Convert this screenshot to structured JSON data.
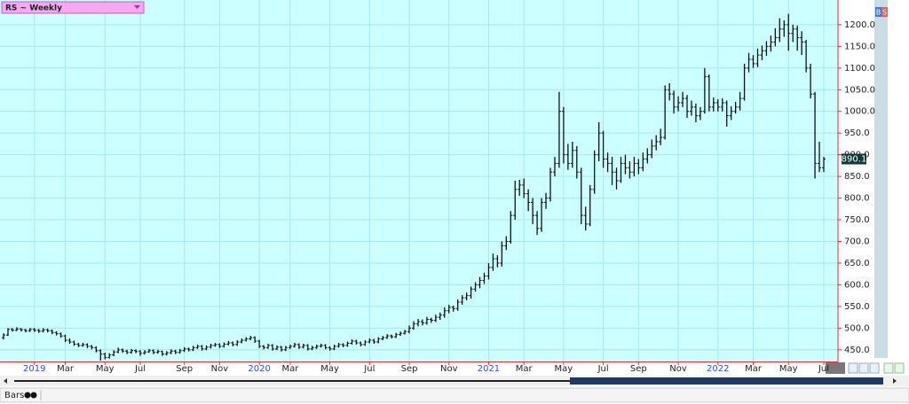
{
  "ui": {
    "symbol": "RS ~ Weekly",
    "toolbar": "Bars",
    "buy": "B",
    "sell": "S"
  },
  "chart_data": {
    "type": "ohlc",
    "color": "#111111",
    "background": "#ccffff",
    "grid": true,
    "ylim": [
      423,
      1257
    ],
    "yticks": [
      {
        "value": 450,
        "label": "450.0"
      },
      {
        "value": 500,
        "label": "500.0"
      },
      {
        "value": 550,
        "label": "550.0"
      },
      {
        "value": 600,
        "label": "600.0"
      },
      {
        "value": 650,
        "label": "650.0"
      },
      {
        "value": 700,
        "label": "700.0"
      },
      {
        "value": 750,
        "label": "750.0"
      },
      {
        "value": 800,
        "label": "800.0"
      },
      {
        "value": 850,
        "label": "850.0"
      },
      {
        "value": 900,
        "label": "900.0"
      },
      {
        "value": 950,
        "label": "950.0"
      },
      {
        "value": 1000,
        "label": "1000.0"
      },
      {
        "value": 1050,
        "label": "1050.0"
      },
      {
        "value": 1100,
        "label": "1100.0"
      },
      {
        "value": 1150,
        "label": "1150.0"
      },
      {
        "value": 1200,
        "label": "1200.0"
      }
    ],
    "categories": [
      null,
      null,
      null,
      null,
      null,
      null,
      null,
      "2019",
      null,
      null,
      null,
      null,
      null,
      null,
      "Mar",
      null,
      null,
      null,
      null,
      null,
      null,
      null,
      null,
      "May",
      null,
      null,
      null,
      null,
      null,
      null,
      null,
      "Jul",
      null,
      null,
      null,
      null,
      null,
      null,
      null,
      null,
      null,
      "Sep",
      null,
      null,
      null,
      null,
      null,
      null,
      null,
      "Nov",
      null,
      null,
      null,
      null,
      null,
      null,
      null,
      null,
      "2020",
      null,
      null,
      null,
      null,
      null,
      null,
      "Mar",
      null,
      null,
      null,
      null,
      null,
      null,
      null,
      null,
      "May",
      null,
      null,
      null,
      null,
      null,
      null,
      null,
      null,
      "Jul",
      null,
      null,
      null,
      null,
      null,
      null,
      null,
      null,
      "Sep",
      null,
      null,
      null,
      null,
      null,
      null,
      null,
      null,
      "Nov",
      null,
      null,
      null,
      null,
      null,
      null,
      null,
      null,
      "2021",
      null,
      null,
      null,
      null,
      null,
      null,
      null,
      "Mar",
      null,
      null,
      null,
      null,
      null,
      null,
      null,
      null,
      "May",
      null,
      null,
      null,
      null,
      null,
      null,
      null,
      null,
      "Jul",
      null,
      null,
      null,
      null,
      null,
      null,
      null,
      "Sep",
      null,
      null,
      null,
      null,
      null,
      null,
      null,
      null,
      "Nov",
      null,
      null,
      null,
      null,
      null,
      null,
      null,
      null,
      "2022",
      null,
      null,
      null,
      null,
      null,
      null,
      null,
      "Mar",
      null,
      null,
      null,
      null,
      null,
      null,
      null,
      "May",
      null,
      null,
      null,
      null,
      null,
      null,
      null,
      "Jul"
    ],
    "ohlc": [
      [
        478,
        488,
        474,
        484
      ],
      [
        484,
        500,
        482,
        497
      ],
      [
        497,
        500,
        492,
        495
      ],
      [
        495,
        502,
        493,
        498
      ],
      [
        498,
        500,
        492,
        496
      ],
      [
        496,
        498,
        490,
        494
      ],
      [
        494,
        500,
        491,
        497
      ],
      [
        497,
        500,
        491,
        495
      ],
      [
        495,
        498,
        489,
        493
      ],
      [
        493,
        500,
        490,
        496
      ],
      [
        496,
        499,
        490,
        494
      ],
      [
        494,
        497,
        486,
        490
      ],
      [
        490,
        493,
        483,
        487
      ],
      [
        487,
        490,
        478,
        482
      ],
      [
        482,
        485,
        468,
        472
      ],
      [
        472,
        476,
        464,
        468
      ],
      [
        468,
        471,
        459,
        463
      ],
      [
        463,
        466,
        456,
        460
      ],
      [
        460,
        466,
        457,
        462
      ],
      [
        462,
        465,
        454,
        458
      ],
      [
        458,
        461,
        451,
        455
      ],
      [
        455,
        458,
        444,
        448
      ],
      [
        448,
        451,
        425,
        440
      ],
      [
        440,
        443,
        428,
        432
      ],
      [
        432,
        442,
        430,
        438
      ],
      [
        438,
        449,
        435,
        445
      ],
      [
        445,
        455,
        442,
        450
      ],
      [
        450,
        453,
        443,
        447
      ],
      [
        447,
        450,
        440,
        444
      ],
      [
        444,
        452,
        441,
        448
      ],
      [
        448,
        451,
        442,
        446
      ],
      [
        446,
        449,
        436,
        442
      ],
      [
        442,
        449,
        439,
        445
      ],
      [
        445,
        452,
        443,
        448
      ],
      [
        448,
        451,
        440,
        444
      ],
      [
        444,
        450,
        441,
        446
      ],
      [
        446,
        448,
        436,
        440
      ],
      [
        440,
        447,
        437,
        443
      ],
      [
        443,
        451,
        440,
        447
      ],
      [
        447,
        450,
        440,
        444
      ],
      [
        444,
        452,
        441,
        448
      ],
      [
        448,
        456,
        445,
        452
      ],
      [
        452,
        455,
        446,
        450
      ],
      [
        450,
        459,
        447,
        455
      ],
      [
        455,
        462,
        452,
        458
      ],
      [
        458,
        461,
        448,
        452
      ],
      [
        452,
        460,
        449,
        456
      ],
      [
        456,
        464,
        453,
        460
      ],
      [
        460,
        466,
        457,
        462
      ],
      [
        462,
        465,
        454,
        458
      ],
      [
        458,
        467,
        455,
        463
      ],
      [
        463,
        470,
        460,
        466
      ],
      [
        466,
        469,
        458,
        462
      ],
      [
        462,
        472,
        459,
        468
      ],
      [
        468,
        476,
        465,
        472
      ],
      [
        472,
        479,
        469,
        475
      ],
      [
        475,
        482,
        472,
        478
      ],
      [
        478,
        481,
        466,
        470
      ],
      [
        470,
        473,
        454,
        458
      ],
      [
        458,
        461,
        451,
        455
      ],
      [
        455,
        464,
        452,
        460
      ],
      [
        460,
        463,
        448,
        452
      ],
      [
        452,
        460,
        449,
        456
      ],
      [
        456,
        459,
        446,
        450
      ],
      [
        450,
        459,
        447,
        455
      ],
      [
        455,
        462,
        452,
        458
      ],
      [
        458,
        466,
        455,
        462
      ],
      [
        462,
        465,
        452,
        456
      ],
      [
        456,
        464,
        453,
        460
      ],
      [
        460,
        463,
        448,
        452
      ],
      [
        452,
        459,
        449,
        455
      ],
      [
        455,
        462,
        452,
        458
      ],
      [
        458,
        464,
        455,
        460
      ],
      [
        460,
        463,
        451,
        455
      ],
      [
        455,
        458,
        448,
        452
      ],
      [
        452,
        462,
        449,
        458
      ],
      [
        458,
        466,
        455,
        462
      ],
      [
        462,
        465,
        456,
        460
      ],
      [
        460,
        469,
        457,
        465
      ],
      [
        465,
        474,
        462,
        470
      ],
      [
        470,
        473,
        462,
        466
      ],
      [
        466,
        469,
        458,
        462
      ],
      [
        462,
        472,
        459,
        468
      ],
      [
        468,
        476,
        465,
        472
      ],
      [
        472,
        475,
        464,
        468
      ],
      [
        468,
        479,
        465,
        475
      ],
      [
        475,
        482,
        472,
        478
      ],
      [
        478,
        486,
        475,
        482
      ],
      [
        482,
        485,
        476,
        480
      ],
      [
        480,
        489,
        477,
        485
      ],
      [
        485,
        492,
        482,
        488
      ],
      [
        488,
        496,
        485,
        492
      ],
      [
        492,
        506,
        488,
        500
      ],
      [
        500,
        516,
        496,
        510
      ],
      [
        510,
        521,
        504,
        515
      ],
      [
        515,
        520,
        506,
        512
      ],
      [
        512,
        526,
        508,
        520
      ],
      [
        520,
        524,
        512,
        518
      ],
      [
        518,
        531,
        514,
        525
      ],
      [
        525,
        536,
        519,
        530
      ],
      [
        530,
        548,
        524,
        540
      ],
      [
        540,
        554,
        534,
        548
      ],
      [
        548,
        552,
        538,
        545
      ],
      [
        545,
        566,
        540,
        560
      ],
      [
        560,
        576,
        554,
        570
      ],
      [
        570,
        582,
        564,
        575
      ],
      [
        575,
        596,
        568,
        590
      ],
      [
        590,
        606,
        584,
        600
      ],
      [
        600,
        618,
        592,
        610
      ],
      [
        610,
        628,
        602,
        620
      ],
      [
        620,
        650,
        612,
        640
      ],
      [
        640,
        672,
        632,
        660
      ],
      [
        660,
        668,
        640,
        650
      ],
      [
        650,
        700,
        642,
        690
      ],
      [
        690,
        712,
        680,
        700
      ],
      [
        700,
        770,
        695,
        760
      ],
      [
        760,
        840,
        750,
        820
      ],
      [
        820,
        842,
        805,
        830
      ],
      [
        830,
        845,
        800,
        810
      ],
      [
        810,
        820,
        770,
        790
      ],
      [
        790,
        800,
        740,
        760
      ],
      [
        760,
        770,
        715,
        730
      ],
      [
        730,
        800,
        722,
        790
      ],
      [
        790,
        812,
        775,
        800
      ],
      [
        800,
        870,
        792,
        860
      ],
      [
        860,
        895,
        850,
        880
      ],
      [
        880,
        1045,
        870,
        1000
      ],
      [
        1000,
        1010,
        880,
        900
      ],
      [
        900,
        925,
        865,
        880
      ],
      [
        880,
        930,
        870,
        910
      ],
      [
        910,
        920,
        845,
        860
      ],
      [
        860,
        870,
        740,
        760
      ],
      [
        760,
        780,
        725,
        740
      ],
      [
        740,
        830,
        735,
        820
      ],
      [
        820,
        910,
        810,
        900
      ],
      [
        900,
        975,
        885,
        950
      ],
      [
        950,
        955,
        870,
        890
      ],
      [
        890,
        905,
        860,
        880
      ],
      [
        880,
        895,
        830,
        860
      ],
      [
        860,
        870,
        820,
        840
      ],
      [
        840,
        895,
        835,
        880
      ],
      [
        880,
        900,
        855,
        870
      ],
      [
        870,
        885,
        845,
        860
      ],
      [
        860,
        895,
        850,
        880
      ],
      [
        880,
        890,
        855,
        870
      ],
      [
        870,
        905,
        862,
        890
      ],
      [
        890,
        915,
        880,
        900
      ],
      [
        900,
        935,
        892,
        920
      ],
      [
        920,
        945,
        910,
        930
      ],
      [
        930,
        960,
        922,
        940
      ],
      [
        940,
        1060,
        935,
        1050
      ],
      [
        1050,
        1065,
        1025,
        1040
      ],
      [
        1040,
        1048,
        995,
        1010
      ],
      [
        1010,
        1035,
        1000,
        1020
      ],
      [
        1020,
        1045,
        1010,
        1030
      ],
      [
        1030,
        1038,
        985,
        1000
      ],
      [
        1000,
        1025,
        990,
        1010
      ],
      [
        1010,
        1018,
        975,
        990
      ],
      [
        990,
        1010,
        980,
        1000
      ],
      [
        1000,
        1100,
        995,
        1080
      ],
      [
        1080,
        1085,
        1000,
        1010
      ],
      [
        1010,
        1032,
        1000,
        1020
      ],
      [
        1020,
        1028,
        1000,
        1010
      ],
      [
        1010,
        1030,
        1000,
        1020
      ],
      [
        1020,
        1025,
        965,
        990
      ],
      [
        990,
        1012,
        980,
        1000
      ],
      [
        1000,
        1022,
        995,
        1010
      ],
      [
        1010,
        1045,
        1002,
        1030
      ],
      [
        1030,
        1110,
        1025,
        1100
      ],
      [
        1100,
        1135,
        1090,
        1120
      ],
      [
        1120,
        1130,
        1100,
        1110
      ],
      [
        1110,
        1145,
        1102,
        1130
      ],
      [
        1130,
        1152,
        1118,
        1140
      ],
      [
        1140,
        1162,
        1128,
        1150
      ],
      [
        1150,
        1175,
        1138,
        1160
      ],
      [
        1160,
        1192,
        1150,
        1170
      ],
      [
        1170,
        1215,
        1160,
        1190
      ],
      [
        1190,
        1210,
        1172,
        1200
      ],
      [
        1200,
        1225,
        1140,
        1180
      ],
      [
        1180,
        1200,
        1160,
        1190
      ],
      [
        1190,
        1198,
        1140,
        1170
      ],
      [
        1170,
        1185,
        1130,
        1160
      ],
      [
        1160,
        1165,
        1090,
        1100
      ],
      [
        1100,
        1110,
        1030,
        1040
      ],
      [
        1040,
        1045,
        845,
        880
      ],
      [
        880,
        930,
        860,
        870
      ],
      [
        870,
        895,
        860,
        890.1
      ]
    ]
  }
}
